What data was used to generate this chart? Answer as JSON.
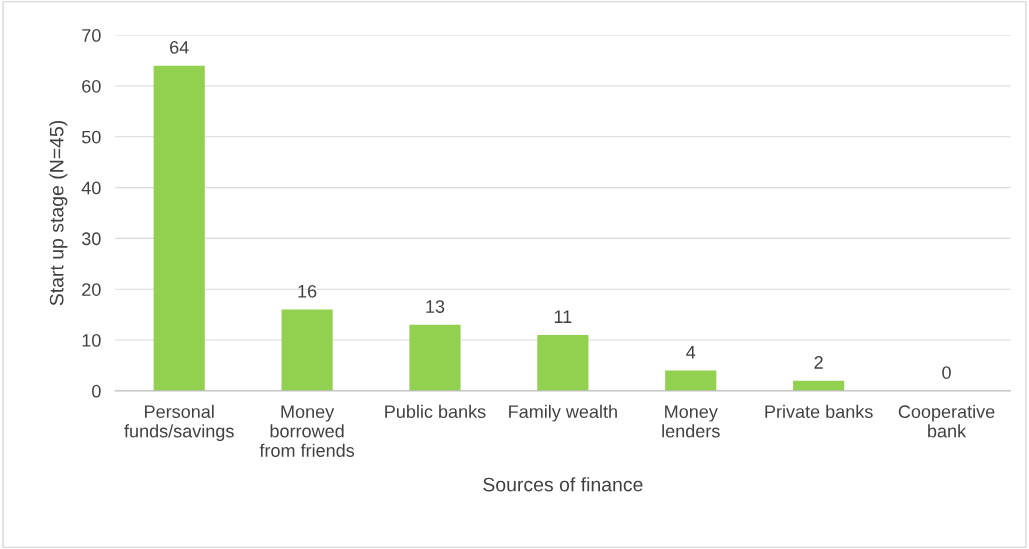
{
  "chart_data": {
    "type": "bar",
    "xlabel": "Sources of finance",
    "ylabel": "Start up stage (N=45)",
    "categories": [
      "Personal\nfunds/savings",
      "Money\nborrowed\nfrom friends",
      "Public banks",
      "Family wealth",
      "Money\nlenders",
      "Private banks",
      "Cooperative\nbank"
    ],
    "values": [
      64,
      16,
      13,
      11,
      4,
      2,
      0
    ],
    "color": "#92d050",
    "ylim": [
      0,
      70
    ],
    "yticks": [
      0,
      10,
      20,
      30,
      40,
      50,
      60,
      70
    ],
    "grid": "y",
    "data_labels": true
  }
}
